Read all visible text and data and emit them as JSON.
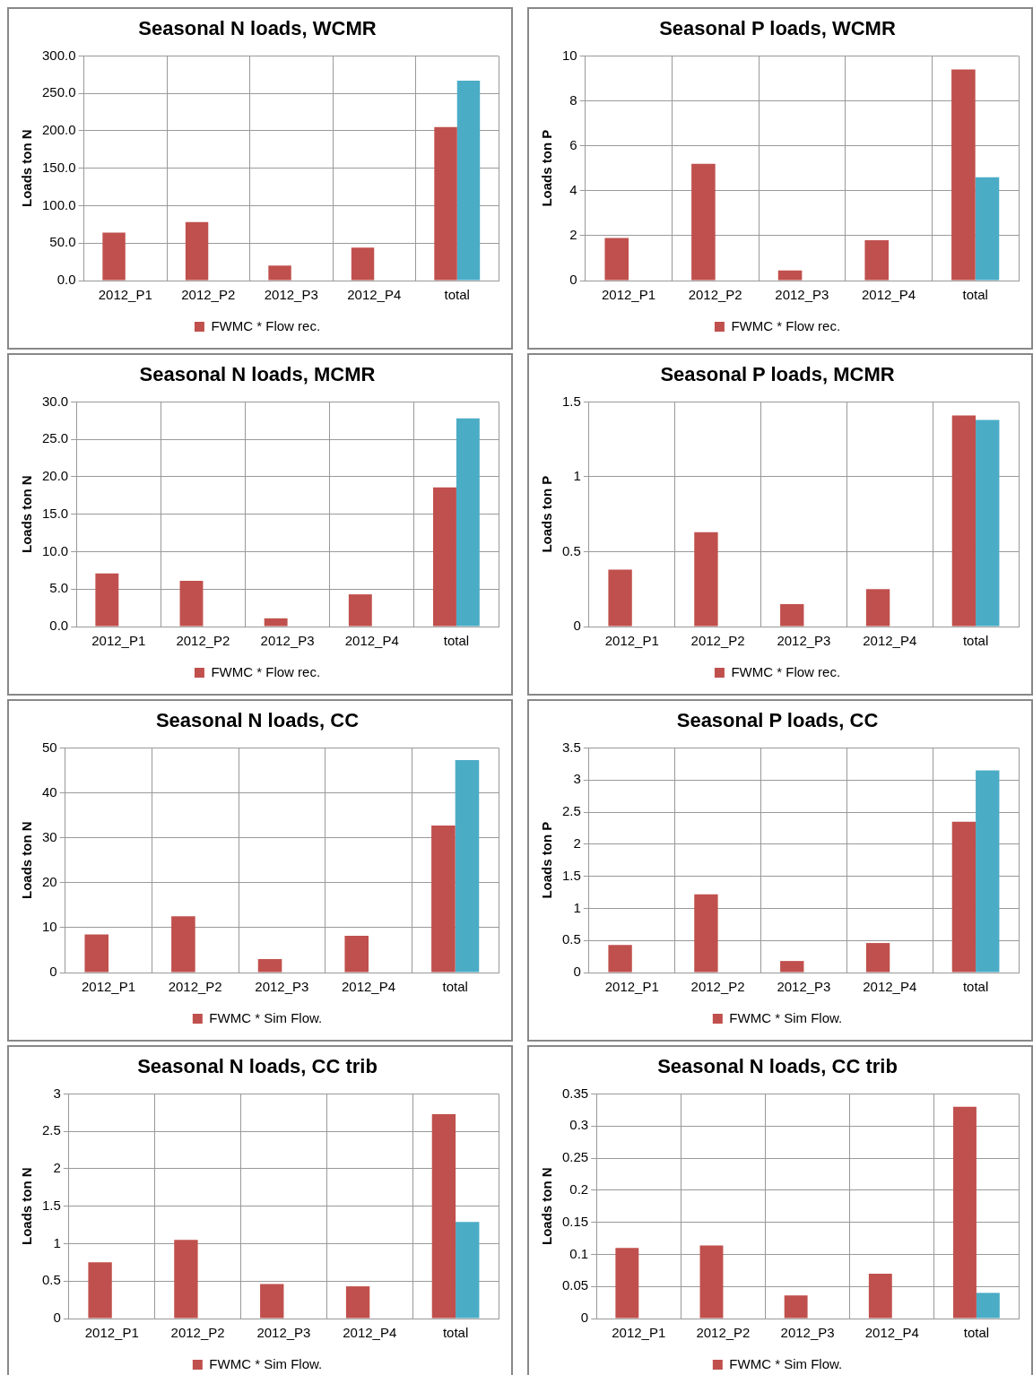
{
  "chart_data": [
    {
      "type": "bar",
      "title": "Seasonal N loads, WCMR",
      "ylabel": "Loads ton N",
      "categories": [
        "2012_P1",
        "2012_P2",
        "2012_P3",
        "2012_P4",
        "total"
      ],
      "ylim": [
        0,
        300
      ],
      "yticks": [
        {
          "value": 0,
          "label": "0.0"
        },
        {
          "value": 50,
          "label": "50.0"
        },
        {
          "value": 100,
          "label": "100.0"
        },
        {
          "value": 150,
          "label": "150.0"
        },
        {
          "value": 200,
          "label": "200.0"
        },
        {
          "value": 250,
          "label": "250.0"
        },
        {
          "value": 300,
          "label": "300.0"
        }
      ],
      "grid": true,
      "legend": "bottom",
      "series": [
        {
          "name": "FWMC * Flow rec.",
          "color": "#c0504d",
          "values": [
            64,
            78,
            20,
            44,
            205
          ]
        },
        {
          "color": "#4bacc6",
          "values": [
            null,
            null,
            null,
            null,
            267
          ]
        }
      ]
    },
    {
      "type": "bar",
      "title": "Seasonal P loads, WCMR",
      "ylabel": "Loads ton P",
      "categories": [
        "2012_P1",
        "2012_P2",
        "2012_P3",
        "2012_P4",
        "total"
      ],
      "ylim": [
        0,
        10
      ],
      "yticks": [
        0,
        2,
        4,
        6,
        8,
        10
      ],
      "grid": true,
      "legend": "bottom",
      "series": [
        {
          "name": "FWMC * Flow rec.",
          "color": "#c0504d",
          "values": [
            1.9,
            5.2,
            0.45,
            1.8,
            9.4
          ]
        },
        {
          "color": "#4bacc6",
          "values": [
            null,
            null,
            null,
            null,
            4.6
          ]
        }
      ]
    },
    {
      "type": "bar",
      "title": "Seasonal N loads, MCMR",
      "ylabel": "Loads ton N",
      "categories": [
        "2012_P1",
        "2012_P2",
        "2012_P3",
        "2012_P4",
        "total"
      ],
      "ylim": [
        0,
        30
      ],
      "yticks": [
        {
          "value": 0,
          "label": "0.0"
        },
        {
          "value": 5,
          "label": "5.0"
        },
        {
          "value": 10,
          "label": "10.0"
        },
        {
          "value": 15,
          "label": "15.0"
        },
        {
          "value": 20,
          "label": "20.0"
        },
        {
          "value": 25,
          "label": "25.0"
        },
        {
          "value": 30,
          "label": "30.0"
        }
      ],
      "grid": true,
      "legend": "bottom",
      "series": [
        {
          "name": "FWMC * Flow rec.",
          "color": "#c0504d",
          "values": [
            7.1,
            6.1,
            1.1,
            4.3,
            18.6
          ]
        },
        {
          "color": "#4bacc6",
          "values": [
            null,
            null,
            null,
            null,
            27.8
          ]
        }
      ]
    },
    {
      "type": "bar",
      "title": "Seasonal P loads, MCMR",
      "ylabel": "Loads ton P",
      "categories": [
        "2012_P1",
        "2012_P2",
        "2012_P3",
        "2012_P4",
        "total"
      ],
      "ylim": [
        0,
        1.5
      ],
      "yticks": [
        0,
        0.5,
        1,
        1.5
      ],
      "grid": true,
      "legend": "bottom",
      "series": [
        {
          "name": "FWMC * Flow rec.",
          "color": "#c0504d",
          "values": [
            0.38,
            0.63,
            0.15,
            0.25,
            1.41
          ]
        },
        {
          "color": "#4bacc6",
          "values": [
            null,
            null,
            null,
            null,
            1.38
          ]
        }
      ]
    },
    {
      "type": "bar",
      "title": "Seasonal N loads, CC",
      "ylabel": "Loads ton N",
      "categories": [
        "2012_P1",
        "2012_P2",
        "2012_P3",
        "2012_P4",
        "total"
      ],
      "ylim": [
        0,
        50
      ],
      "yticks": [
        0,
        10,
        20,
        30,
        40,
        50
      ],
      "grid": true,
      "legend": "bottom",
      "series": [
        {
          "name": "FWMC * Sim Flow.",
          "color": "#c0504d",
          "values": [
            8.5,
            12.5,
            3,
            8.2,
            32.7
          ]
        },
        {
          "color": "#4bacc6",
          "values": [
            null,
            null,
            null,
            null,
            47.3
          ]
        }
      ]
    },
    {
      "type": "bar",
      "title": "Seasonal P loads, CC",
      "ylabel": "Loads ton P",
      "categories": [
        "2012_P1",
        "2012_P2",
        "2012_P3",
        "2012_P4",
        "total"
      ],
      "ylim": [
        0,
        3.5
      ],
      "yticks": [
        0,
        0.5,
        1,
        1.5,
        2,
        2.5,
        3,
        3.5
      ],
      "grid": true,
      "legend": "bottom",
      "series": [
        {
          "name": "FWMC * Sim Flow.",
          "color": "#c0504d",
          "values": [
            0.43,
            1.22,
            0.18,
            0.46,
            2.35
          ]
        },
        {
          "color": "#4bacc6",
          "values": [
            null,
            null,
            null,
            null,
            3.15
          ]
        }
      ]
    },
    {
      "type": "bar",
      "title": "Seasonal N loads, CC trib",
      "ylabel": "Loads ton N",
      "categories": [
        "2012_P1",
        "2012_P2",
        "2012_P3",
        "2012_P4",
        "total"
      ],
      "ylim": [
        0,
        3
      ],
      "yticks": [
        0,
        0.5,
        1,
        1.5,
        2,
        2.5,
        3
      ],
      "grid": true,
      "legend": "bottom",
      "series": [
        {
          "name": "FWMC * Sim Flow.",
          "color": "#c0504d",
          "values": [
            0.75,
            1.05,
            0.46,
            0.43,
            2.73
          ]
        },
        {
          "color": "#4bacc6",
          "values": [
            null,
            null,
            null,
            null,
            1.29
          ]
        }
      ]
    },
    {
      "type": "bar",
      "title": "Seasonal N loads, CC trib",
      "ylabel": "Loads ton N",
      "categories": [
        "2012_P1",
        "2012_P2",
        "2012_P3",
        "2012_P4",
        "total"
      ],
      "ylim": [
        0,
        0.35
      ],
      "yticks": [
        0,
        0.05,
        0.1,
        0.15,
        0.2,
        0.25,
        0.3,
        0.35
      ],
      "grid": true,
      "legend": "bottom",
      "series": [
        {
          "name": "FWMC * Sim Flow.",
          "color": "#c0504d",
          "values": [
            0.11,
            0.114,
            0.036,
            0.07,
            0.33
          ]
        },
        {
          "color": "#4bacc6",
          "values": [
            null,
            null,
            null,
            null,
            0.04
          ]
        }
      ]
    }
  ]
}
